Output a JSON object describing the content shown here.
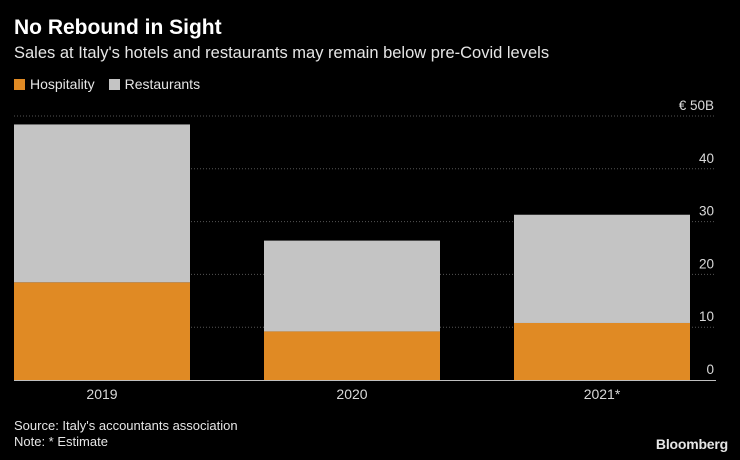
{
  "header": {
    "title": "No Rebound in Sight",
    "subtitle": "Sales at Italy's hotels and restaurants may remain below pre-Covid levels"
  },
  "legend": {
    "items": [
      {
        "label": "Hospitality",
        "color": "#e08a24"
      },
      {
        "label": "Restaurants",
        "color": "#c4c4c4"
      }
    ]
  },
  "chart_data": {
    "type": "bar",
    "stacked": true,
    "categories": [
      "2019",
      "2020",
      "2021*"
    ],
    "series": [
      {
        "name": "Hospitality",
        "values": [
          18.5,
          9.2,
          10.8
        ],
        "color": "#e08a24"
      },
      {
        "name": "Restaurants",
        "values": [
          29.9,
          17.2,
          20.5
        ],
        "color": "#c4c4c4"
      }
    ],
    "ylim": [
      0,
      50
    ],
    "yticks": [
      0,
      10,
      20,
      30,
      40,
      50
    ],
    "ytick_labels": [
      "0",
      "10",
      "20",
      "30",
      "40",
      "€ 50B"
    ],
    "grid": true,
    "gridline_color": "#555555",
    "legend_position": "top-left"
  },
  "footer": {
    "source": "Source: Italy's accountants association",
    "note": "Note: * Estimate",
    "brand": "Bloomberg"
  }
}
